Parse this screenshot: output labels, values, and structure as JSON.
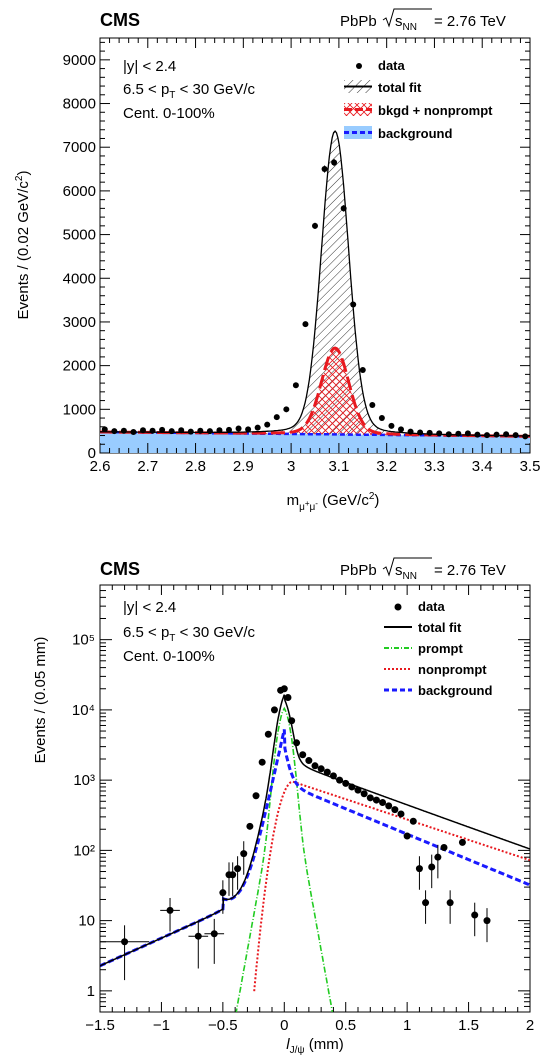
{
  "chart_data": [
    {
      "type": "scatter",
      "experiment": "CMS",
      "collision": "PbPb",
      "energy": "= 2.76 TeV",
      "annotations": [
        "|y| < 2.4",
        "6.5 < p_T < 30 GeV/c",
        "Cent. 0-100%"
      ],
      "xlabel": "m_{μ+μ-} (GeV/c²)",
      "ylabel": "Events / (0.02 GeV/c²)",
      "xlim": [
        2.6,
        3.5
      ],
      "ylim": [
        0,
        9500
      ],
      "x_ticks": [
        "2.6",
        "2.7",
        "2.8",
        "2.9",
        "3",
        "3.1",
        "3.2",
        "3.3",
        "3.4",
        "3.5"
      ],
      "y_ticks": [
        "0",
        "1000",
        "2000",
        "3000",
        "4000",
        "5000",
        "6000",
        "7000",
        "8000",
        "9000"
      ],
      "legend": [
        "data",
        "total fit",
        "bkgd + nonprompt",
        "background"
      ],
      "legend_position": "top-right",
      "colors": {
        "data": "#000000",
        "total_fit": "#000000",
        "nonprompt": "#e8191f",
        "background_fill": "#99ccff",
        "background_line": "#1a1aff"
      },
      "series": [
        {
          "name": "data",
          "x": [
            2.61,
            2.63,
            2.65,
            2.67,
            2.69,
            2.71,
            2.73,
            2.75,
            2.77,
            2.79,
            2.81,
            2.83,
            2.85,
            2.87,
            2.89,
            2.91,
            2.93,
            2.95,
            2.97,
            2.99,
            3.01,
            3.03,
            3.05,
            3.07,
            3.09,
            3.11,
            3.13,
            3.15,
            3.17,
            3.19,
            3.21,
            3.23,
            3.25,
            3.27,
            3.29,
            3.31,
            3.33,
            3.35,
            3.37,
            3.39,
            3.41,
            3.43,
            3.45,
            3.47,
            3.49
          ],
          "y": [
            540,
            500,
            510,
            480,
            520,
            510,
            530,
            500,
            520,
            490,
            510,
            500,
            520,
            530,
            560,
            540,
            580,
            650,
            820,
            1000,
            1550,
            2950,
            5200,
            6500,
            6650,
            5600,
            3400,
            1900,
            1100,
            800,
            620,
            540,
            490,
            470,
            460,
            450,
            430,
            440,
            450,
            420,
            410,
            420,
            430,
            410,
            380
          ]
        },
        {
          "name": "total fit",
          "peak_mass": 3.092,
          "peak_value": 6900,
          "base": 470
        },
        {
          "name": "bkgd + nonprompt",
          "peak_value": 2300
        },
        {
          "name": "background",
          "value_at_2.6": 480,
          "value_at_3.5": 380
        }
      ]
    },
    {
      "type": "scatter",
      "experiment": "CMS",
      "collision": "PbPb",
      "energy": "= 2.76 TeV",
      "annotations": [
        "|y| < 2.4",
        "6.5 < p_T < 30 GeV/c",
        "Cent. 0-100%"
      ],
      "xlabel": "l_{J/ψ} (mm)",
      "ylabel": "Events / (0.05 mm)",
      "xlim": [
        -1.5,
        2
      ],
      "ylim": [
        0.5,
        600000
      ],
      "log_y": true,
      "x_ticks": [
        "−1.5",
        "−1",
        "−0.5",
        "0",
        "0.5",
        "1",
        "1.5",
        "2"
      ],
      "y_ticks": [
        "1",
        "10",
        "10²",
        "10³",
        "10⁴",
        "10⁵"
      ],
      "legend": [
        "data",
        "total fit",
        "prompt",
        "nonprompt",
        "background"
      ],
      "legend_position": "top-right",
      "colors": {
        "data": "#000000",
        "total_fit": "#000000",
        "prompt": "#22cc22",
        "nonprompt": "#e8191f",
        "background": "#1a1aff"
      },
      "series": [
        {
          "name": "data",
          "x": [
            -1.3,
            -0.93,
            -0.7,
            -0.57,
            -0.5,
            -0.45,
            -0.42,
            -0.38,
            -0.33,
            -0.28,
            -0.23,
            -0.18,
            -0.13,
            -0.08,
            -0.03,
            0,
            0.03,
            0.06,
            0.1,
            0.15,
            0.2,
            0.25,
            0.3,
            0.35,
            0.4,
            0.45,
            0.5,
            0.55,
            0.6,
            0.65,
            0.7,
            0.75,
            0.8,
            0.85,
            0.9,
            0.95,
            1.0,
            1.05,
            1.1,
            1.15,
            1.2,
            1.25,
            1.3,
            1.35,
            1.45,
            1.55,
            1.65
          ],
          "y": [
            5,
            14,
            6,
            6.5,
            25,
            45,
            45,
            55,
            90,
            220,
            600,
            1800,
            4500,
            10000,
            19000,
            20000,
            15000,
            7000,
            3400,
            2300,
            1900,
            1600,
            1450,
            1300,
            1150,
            1000,
            900,
            800,
            720,
            640,
            560,
            520,
            480,
            430,
            380,
            330,
            160,
            260,
            55,
            18,
            58,
            80,
            110,
            18,
            130,
            12,
            10
          ]
        },
        {
          "name": "total fit"
        },
        {
          "name": "prompt",
          "peak_value": 7500
        },
        {
          "name": "nonprompt",
          "peak_value": 950
        },
        {
          "name": "background",
          "peak_value": 7500
        }
      ]
    }
  ]
}
